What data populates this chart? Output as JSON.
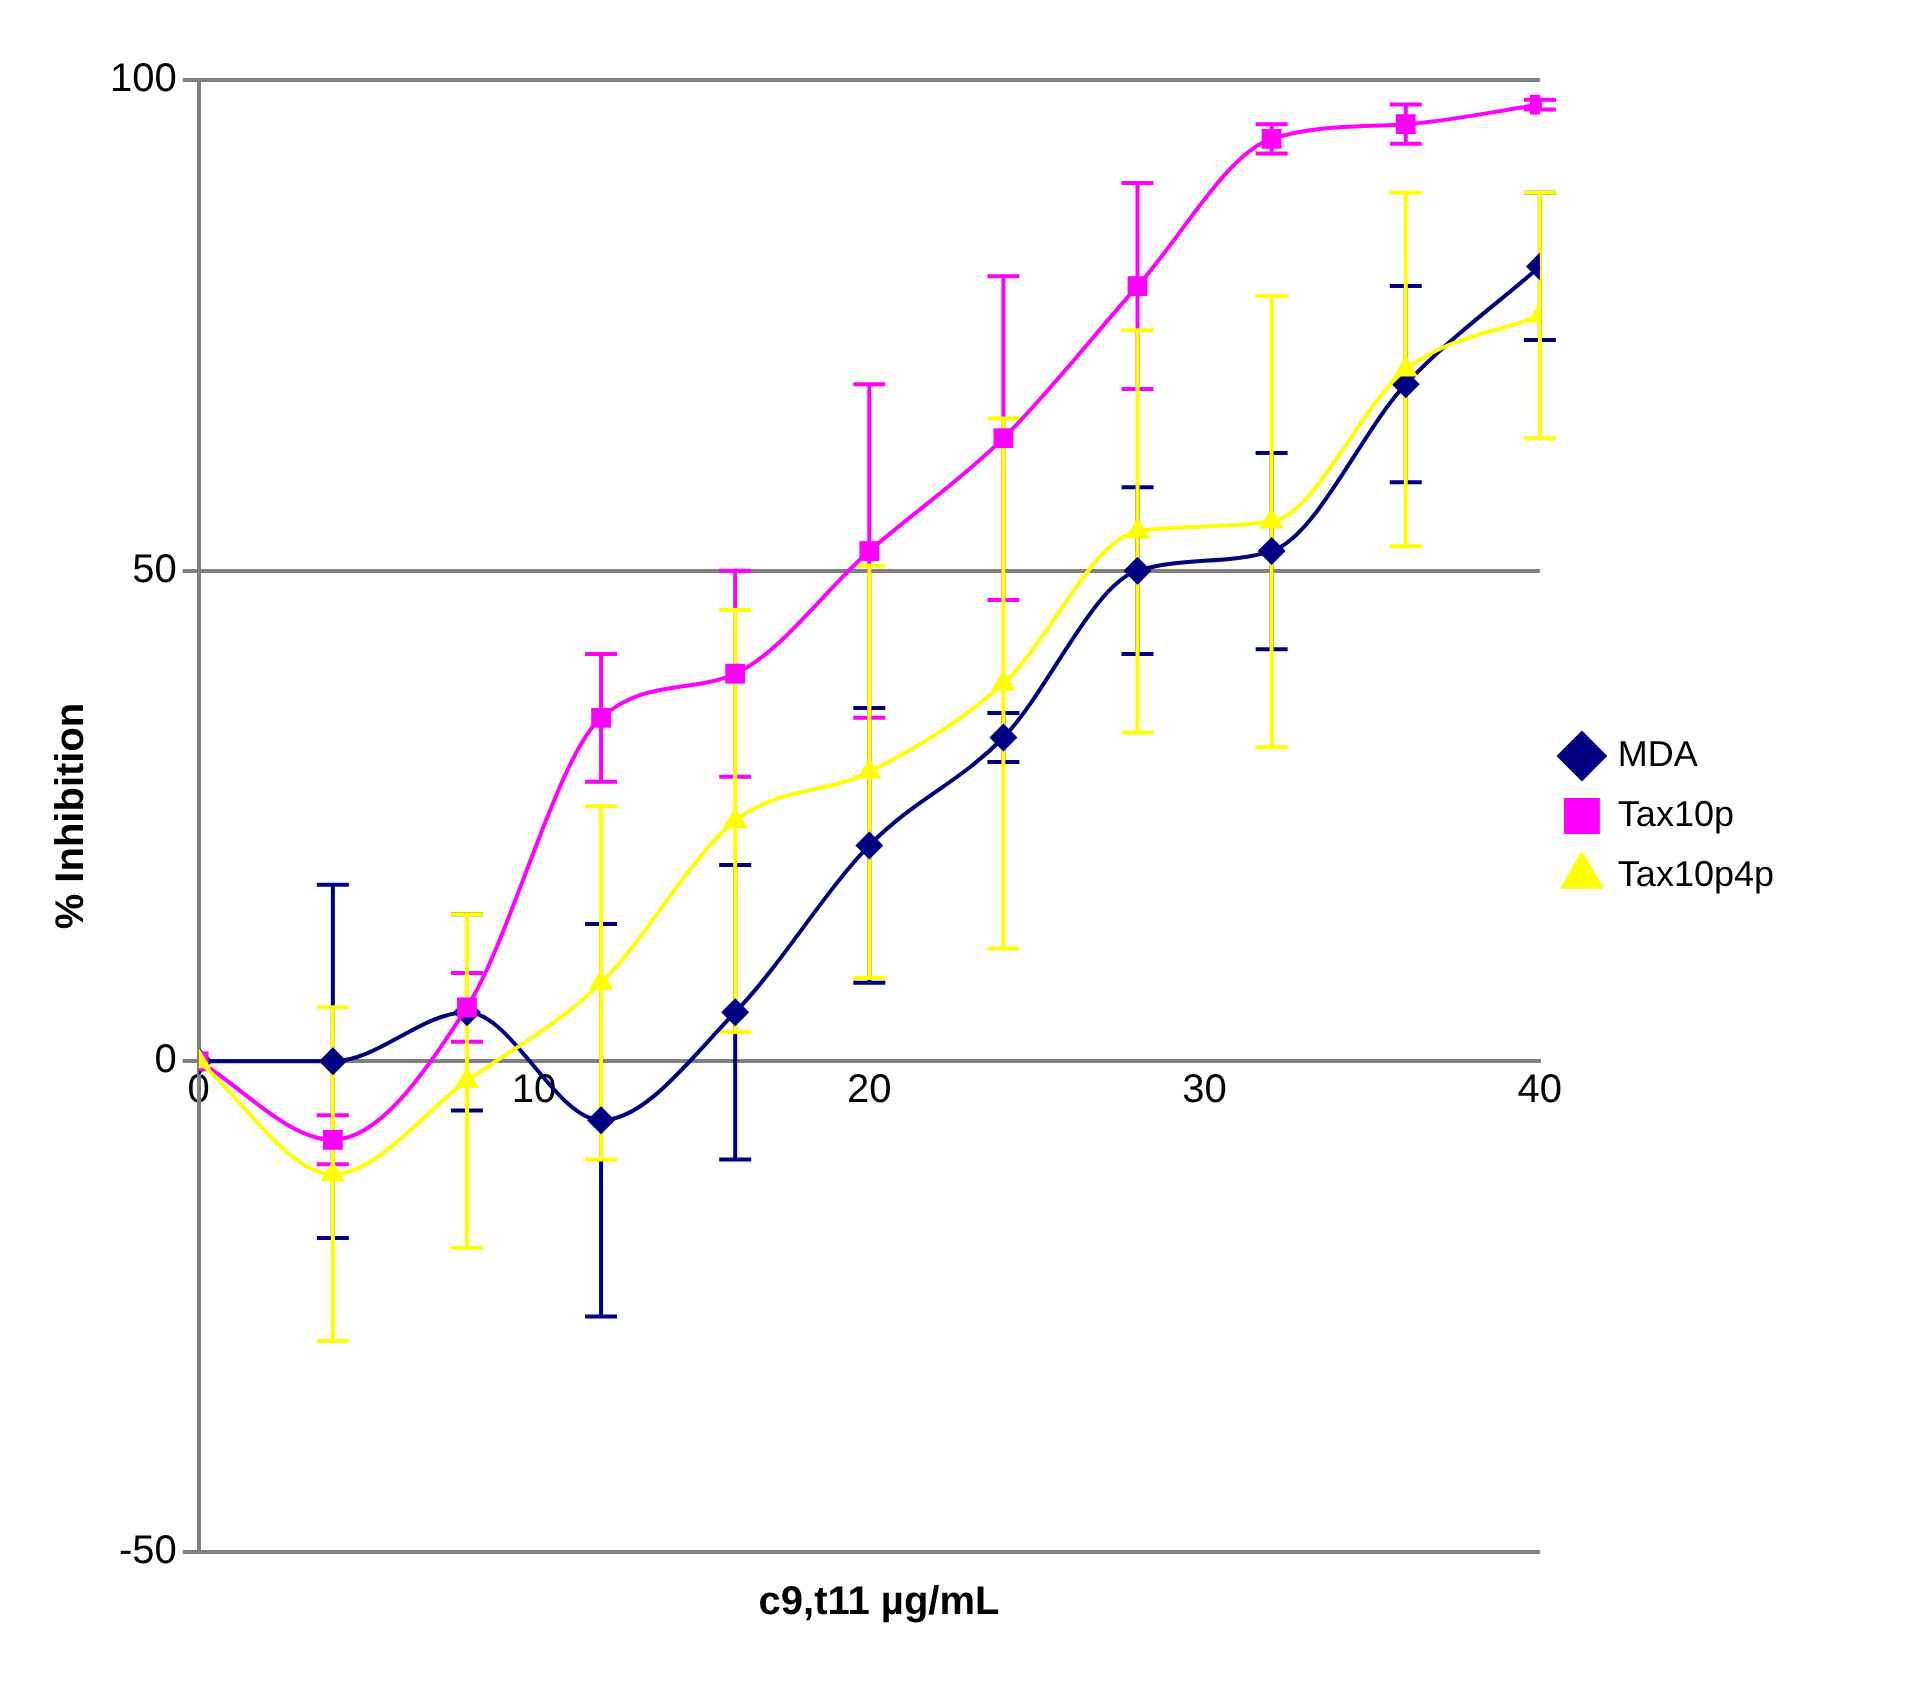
{
  "chart_data": {
    "type": "line",
    "xlabel": "c9,t11  µg/mL",
    "ylabel": "% Inhibition",
    "x": [
      0,
      4,
      8,
      12,
      16,
      20,
      24,
      28,
      32,
      36,
      40
    ],
    "xlim": [
      0,
      40
    ],
    "xticks": [
      0,
      10,
      20,
      30,
      40
    ],
    "ylim": [
      -50,
      100
    ],
    "yticks": [
      -50,
      0,
      50,
      100
    ],
    "grid": "y",
    "legend": "right",
    "line_style": "solid",
    "series": [
      {
        "name": "MDA",
        "color": "#000080",
        "marker": "diamond",
        "values": [
          0,
          0,
          5,
          -6,
          5,
          22,
          33,
          50,
          52,
          69,
          81
        ],
        "errors": [
          null,
          18,
          10,
          20,
          15,
          14,
          2.5,
          8.5,
          10,
          10,
          7.5
        ]
      },
      {
        "name": "Tax10p",
        "color": "#ff00ff",
        "marker": "square",
        "values": [
          0,
          -8,
          5.5,
          35,
          39.5,
          52,
          63.5,
          79,
          94,
          95.5,
          97.5
        ],
        "errors": [
          null,
          2.5,
          3.5,
          6.5,
          10.5,
          17,
          16.5,
          10.5,
          1.5,
          2,
          0.5
        ]
      },
      {
        "name": "Tax10p4p",
        "color": "#ffff00",
        "marker": "triangle",
        "values": [
          0,
          -11.5,
          -2,
          8,
          24.5,
          29.5,
          38.5,
          54,
          55,
          70.5,
          76
        ],
        "errors": [
          null,
          17,
          17,
          18,
          21.5,
          21,
          27,
          20.5,
          23,
          18,
          12.5
        ]
      }
    ]
  }
}
